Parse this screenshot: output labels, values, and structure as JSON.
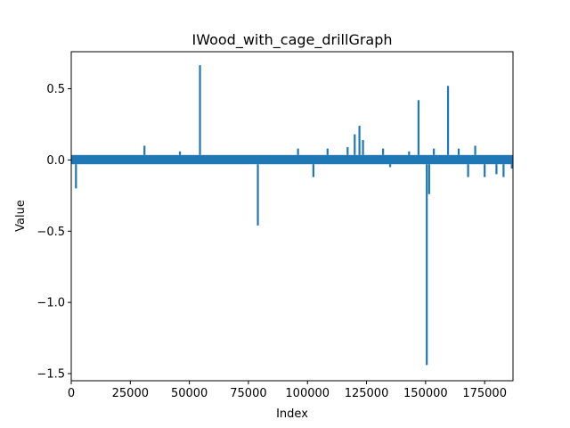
{
  "chart_data": {
    "type": "line",
    "title": "IWood_with_cage_drillGraph",
    "xlabel": "Index",
    "ylabel": "Value",
    "xlim": [
      0,
      187000
    ],
    "ylim": [
      -1.55,
      0.76
    ],
    "x_ticks": [
      0,
      25000,
      50000,
      75000,
      100000,
      125000,
      150000,
      175000
    ],
    "x_tick_labels": [
      "0",
      "25000",
      "50000",
      "75000",
      "100000",
      "125000",
      "150000",
      "175000"
    ],
    "y_ticks": [
      0.5,
      0.0,
      -0.5,
      -1.0,
      -1.5
    ],
    "y_tick_labels": [
      "0.5",
      "0.0",
      "−0.5",
      "−1.0",
      "−1.5"
    ],
    "grid": false,
    "series_color": "#1f77b4",
    "noise_band": [
      -0.03,
      0.035
    ],
    "spikes": [
      {
        "x": 2000,
        "y": -0.2
      },
      {
        "x": 31000,
        "y": 0.1
      },
      {
        "x": 46000,
        "y": 0.06
      },
      {
        "x": 54500,
        "y": 0.665
      },
      {
        "x": 79000,
        "y": -0.46
      },
      {
        "x": 96000,
        "y": 0.08
      },
      {
        "x": 102500,
        "y": -0.12
      },
      {
        "x": 108500,
        "y": 0.08
      },
      {
        "x": 117000,
        "y": 0.09
      },
      {
        "x": 120000,
        "y": 0.18
      },
      {
        "x": 122000,
        "y": 0.24
      },
      {
        "x": 123500,
        "y": 0.14
      },
      {
        "x": 132000,
        "y": 0.08
      },
      {
        "x": 135000,
        "y": -0.05
      },
      {
        "x": 143000,
        "y": 0.06
      },
      {
        "x": 147000,
        "y": 0.42
      },
      {
        "x": 150500,
        "y": -1.44
      },
      {
        "x": 151500,
        "y": -0.24
      },
      {
        "x": 153500,
        "y": 0.08
      },
      {
        "x": 159500,
        "y": 0.52
      },
      {
        "x": 164000,
        "y": 0.08
      },
      {
        "x": 168000,
        "y": -0.12
      },
      {
        "x": 171000,
        "y": 0.1
      },
      {
        "x": 175000,
        "y": -0.12
      },
      {
        "x": 180000,
        "y": -0.1
      },
      {
        "x": 183000,
        "y": -0.12
      },
      {
        "x": 186500,
        "y": -0.06
      }
    ]
  }
}
